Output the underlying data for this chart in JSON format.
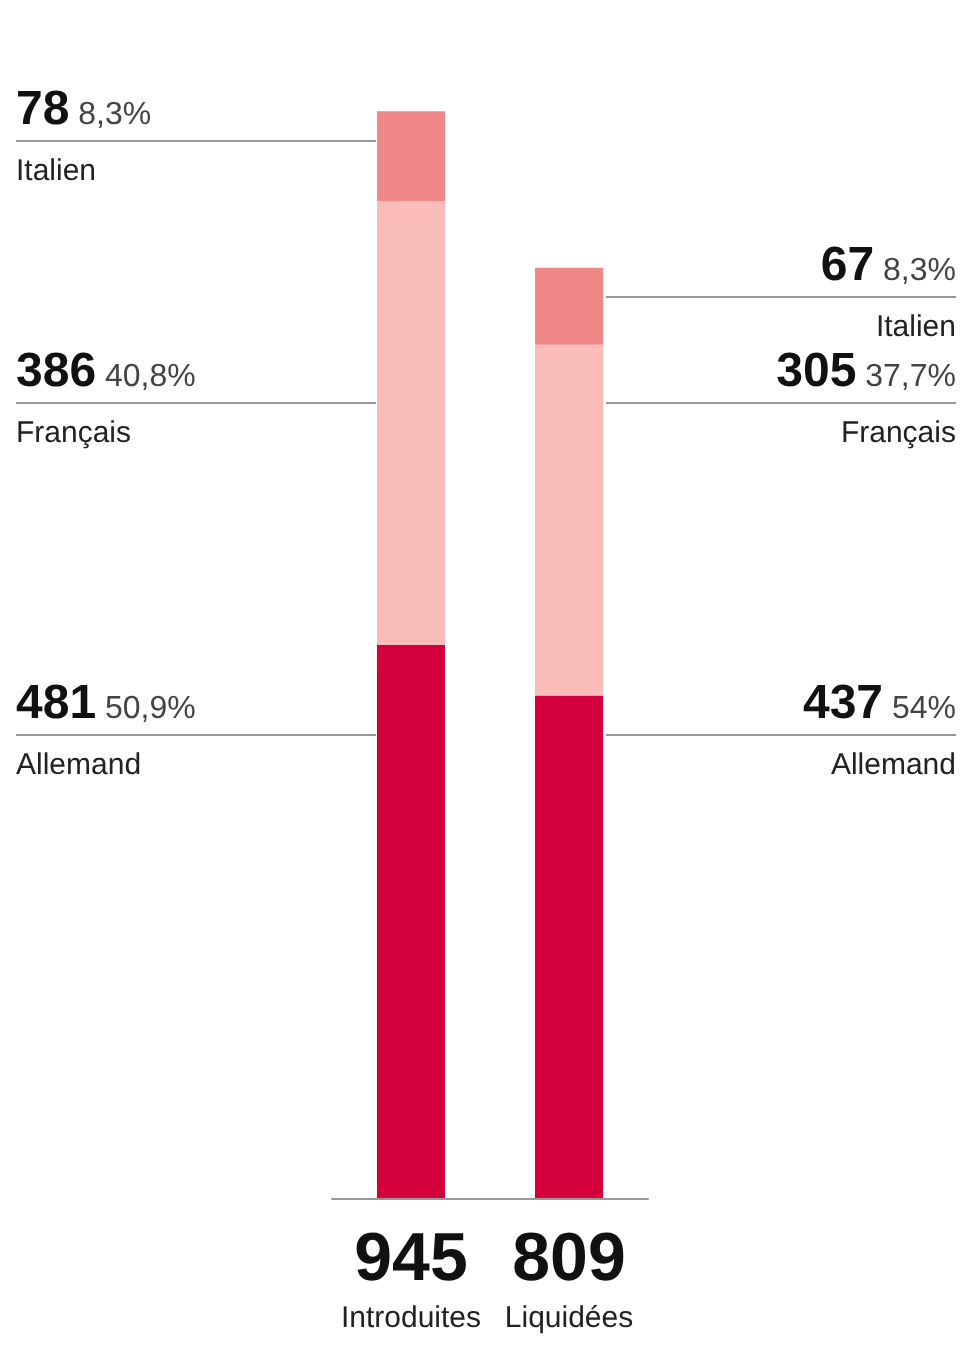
{
  "chart_data": {
    "type": "bar",
    "stacked": true,
    "categories": [
      "Introduites",
      "Liquidées"
    ],
    "series": [
      {
        "name": "Allemand",
        "color": "#d4003d",
        "values": [
          481,
          437
        ],
        "value_labels": [
          "481 50,9%",
          "437 54%"
        ]
      },
      {
        "name": "Français",
        "color": "#f9bcb8",
        "values": [
          386,
          305
        ],
        "value_labels": [
          "386 40,8%",
          "305 37,7%"
        ]
      },
      {
        "name": "Italien",
        "color": "#ef8886",
        "values": [
          78,
          67
        ],
        "value_labels": [
          "78 8,3%",
          "67 8,3%"
        ]
      }
    ],
    "totals": [
      "945",
      "809"
    ],
    "legend": false
  }
}
